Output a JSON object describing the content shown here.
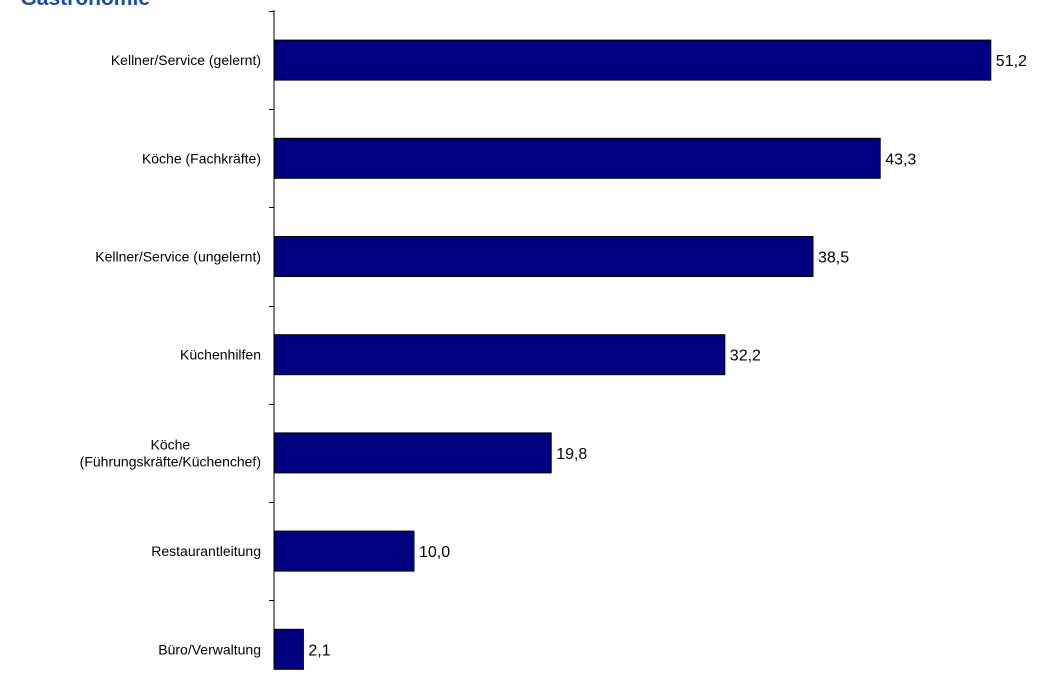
{
  "title": "Gastronomie",
  "chart_data": {
    "type": "bar",
    "orientation": "horizontal",
    "categories": [
      [
        "Kellner/Service (gelernt)"
      ],
      [
        "Köche (Fachkräfte)"
      ],
      [
        "Kellner/Service (ungelernt)"
      ],
      [
        "Küchenhilfen"
      ],
      [
        "Köche",
        "(Führungskräfte/Küchenchef)"
      ],
      [
        "Restaurantleitung"
      ],
      [
        "Büro/Verwaltung"
      ]
    ],
    "values": [
      51.2,
      43.3,
      38.5,
      32.2,
      19.8,
      10.0,
      2.1
    ],
    "value_labels": [
      "51,2",
      "43,3",
      "38,5",
      "32,2",
      "19,8",
      "10,0",
      "2,1"
    ],
    "xlim": [
      0,
      55
    ],
    "grid": false,
    "colors": {
      "bar": "#000080",
      "bar_stroke": "#000000",
      "title": "#1f4e9e"
    }
  }
}
